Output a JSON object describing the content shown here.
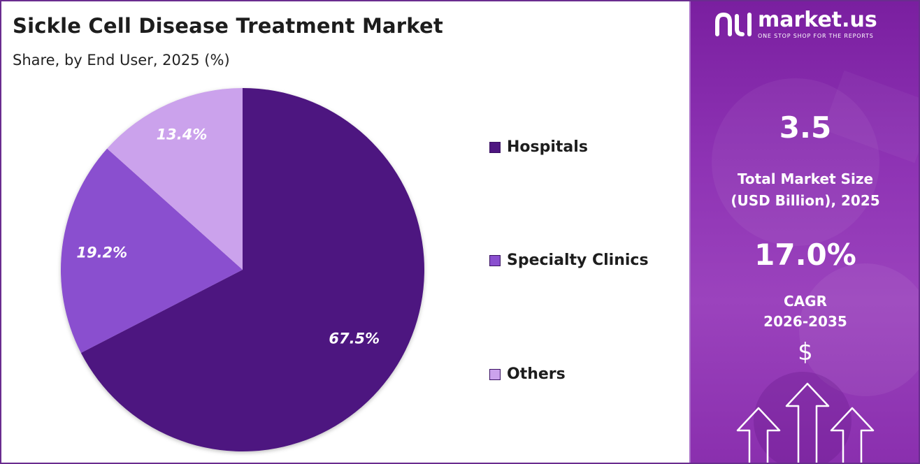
{
  "chart_data": {
    "type": "pie",
    "title": "Sickle Cell Disease Treatment Market",
    "subtitle": "Share, by End User, 2025 (%)",
    "categories": [
      "Hospitals",
      "Specialty Clinics",
      "Others"
    ],
    "values": [
      67.5,
      19.2,
      13.4
    ],
    "data_labels": [
      "67.5%",
      "19.2%",
      "13.4%"
    ],
    "colors": [
      "#4e1680",
      "#8a4fcf",
      "#cba2ec"
    ],
    "start_angle": "12 o'clock",
    "direction": "clockwise",
    "legend_placement": "right"
  },
  "panel": {
    "brand_name": "market.us",
    "brand_tagline": "ONE STOP SHOP FOR THE REPORTS",
    "market_size_value": "3.5",
    "market_size_label_line1": "Total Market Size",
    "market_size_label_line2": "(USD Billion), 2025",
    "cagr_value": "17.0%",
    "cagr_label_line1": "CAGR",
    "cagr_label_line2": "2026-2035",
    "currency_symbol": "$",
    "icons": [
      "logo-icon",
      "arrow-up-icon"
    ],
    "background_color": "#8e33b4"
  }
}
